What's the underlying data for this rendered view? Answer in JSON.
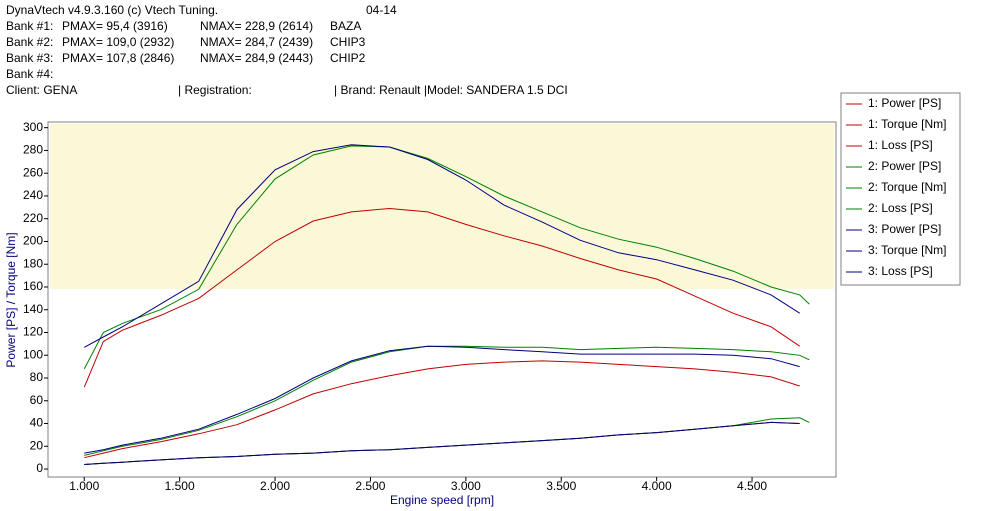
{
  "header": {
    "app": "DynaVtech v4.9.3.160 (c) Vtech Tuning.",
    "date": "04-14",
    "banks": [
      {
        "label": "Bank #1:",
        "pmax": "PMAX= 95,4 (3916)",
        "nmax": "NMAX= 228,9 (2614)",
        "name": "BAZA"
      },
      {
        "label": "Bank #2:",
        "pmax": "PMAX= 109,0 (2932)",
        "nmax": "NMAX= 284,7 (2439)",
        "name": "CHIP3"
      },
      {
        "label": "Bank #3:",
        "pmax": "PMAX= 107,8 (2846)",
        "nmax": "NMAX= 284,9 (2443)",
        "name": "CHIP2"
      },
      {
        "label": "Bank #4:"
      }
    ],
    "client": "Client:  GENA",
    "registration": "| Registration:",
    "brand": "| Brand: Renault |Model: SANDERA 1.5 DCI"
  },
  "chart_data": {
    "type": "line",
    "y_label": "Power [PS] / Torque [Nm]",
    "x_label": "Engine speed [rpm]",
    "x": [
      1000,
      1100,
      1200,
      1400,
      1600,
      1800,
      2000,
      2200,
      2400,
      2600,
      2800,
      3000,
      3200,
      3400,
      3600,
      3800,
      4000,
      4200,
      4400,
      4600,
      4750,
      4800
    ],
    "xlim": [
      810,
      4940
    ],
    "xticks": [
      {
        "value": 1000,
        "label": "1.000"
      },
      {
        "value": 1500,
        "label": "1.500"
      },
      {
        "value": 2000,
        "label": "2.000"
      },
      {
        "value": 2500,
        "label": "2.500"
      },
      {
        "value": 3000,
        "label": "3.000"
      },
      {
        "value": 3500,
        "label": "3.500"
      },
      {
        "value": 4000,
        "label": "4.000"
      },
      {
        "value": 4500,
        "label": "4.500"
      }
    ],
    "ylim": [
      -7,
      305
    ],
    "yticks": [
      0,
      20,
      40,
      60,
      80,
      100,
      120,
      140,
      160,
      180,
      200,
      220,
      240,
      260,
      280,
      300
    ],
    "legend": "right",
    "series": [
      {
        "name": "1: Power [PS]",
        "color": "#c00000",
        "values": [
          10,
          14,
          18,
          24,
          31,
          39,
          52,
          66,
          75,
          82,
          88,
          92,
          94,
          95,
          94,
          92,
          90,
          88,
          85,
          81,
          73,
          null
        ]
      },
      {
        "name": "1: Torque [Nm]",
        "color": "#c00000",
        "values": [
          72,
          112,
          122,
          135,
          150,
          175,
          200,
          218,
          226,
          229,
          226,
          215,
          205,
          196,
          185,
          175,
          167,
          152,
          137,
          125,
          108,
          null
        ]
      },
      {
        "name": "1: Loss [PS]",
        "color": "#c00000",
        "values": [
          4,
          5,
          6,
          8,
          10,
          11,
          13,
          14,
          16,
          17,
          19,
          21,
          23,
          25,
          27,
          30,
          32,
          35,
          38,
          41,
          40,
          null
        ]
      },
      {
        "name": "2: Power [PS]",
        "color": "#008000",
        "values": [
          12,
          16,
          20,
          26,
          34,
          46,
          60,
          78,
          94,
          103,
          108,
          108,
          107,
          107,
          105,
          106,
          107,
          106,
          105,
          103,
          100,
          96
        ]
      },
      {
        "name": "2: Torque [Nm]",
        "color": "#008000",
        "values": [
          88,
          120,
          128,
          140,
          158,
          215,
          255,
          276,
          284,
          283,
          273,
          257,
          240,
          226,
          212,
          202,
          195,
          185,
          174,
          160,
          153,
          145
        ]
      },
      {
        "name": "2: Loss [PS]",
        "color": "#008000",
        "values": [
          4,
          5,
          6,
          8,
          10,
          11,
          13,
          14,
          16,
          17,
          19,
          21,
          23,
          25,
          27,
          30,
          32,
          35,
          38,
          44,
          45,
          41
        ]
      },
      {
        "name": "3: Power [PS]",
        "color": "#000080",
        "values": [
          14,
          17,
          21,
          27,
          35,
          48,
          62,
          80,
          95,
          104,
          108,
          107,
          105,
          103,
          101,
          101,
          101,
          101,
          100,
          97,
          90,
          null
        ]
      },
      {
        "name": "3: Torque [Nm]",
        "color": "#000080",
        "values": [
          107,
          116,
          125,
          145,
          165,
          228,
          263,
          279,
          285,
          283,
          272,
          254,
          232,
          217,
          201,
          190,
          184,
          175,
          166,
          153,
          137,
          null
        ]
      },
      {
        "name": "3: Loss [PS]",
        "color": "#000080",
        "values": [
          4,
          5,
          6,
          8,
          10,
          11,
          13,
          14,
          16,
          17,
          19,
          21,
          23,
          25,
          27,
          30,
          32,
          35,
          38,
          41,
          40,
          null
        ]
      }
    ]
  }
}
